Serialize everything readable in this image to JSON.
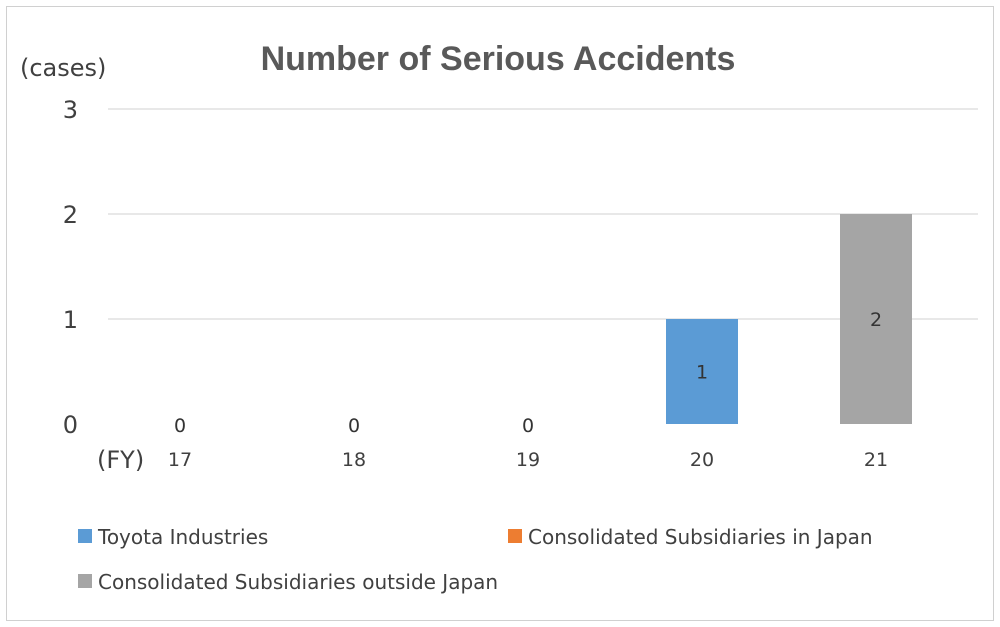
{
  "chart_data": {
    "type": "bar",
    "title": "Number of Serious Accidents",
    "ylabel": "(cases)",
    "xlabel": "(FY)",
    "categories": [
      "17",
      "18",
      "19",
      "20",
      "21"
    ],
    "ylim": [
      0,
      3
    ],
    "yticks": [
      "0",
      "1",
      "2",
      "3"
    ],
    "grid": true,
    "legend_position": "bottom",
    "stacked": true,
    "series": [
      {
        "name": "Toyota Industries",
        "color": "#5b9bd5",
        "values": [
          0,
          0,
          0,
          1,
          0
        ]
      },
      {
        "name": "Consolidated Subsidiaries in Japan",
        "color": "#ed7d31",
        "values": [
          0,
          0,
          0,
          0,
          0
        ]
      },
      {
        "name": "Consolidated Subsidiaries outside Japan",
        "color": "#a5a5a5",
        "values": [
          0,
          0,
          0,
          0,
          2
        ]
      }
    ],
    "totals": [
      "0",
      "0",
      "0",
      "1",
      "2"
    ]
  }
}
